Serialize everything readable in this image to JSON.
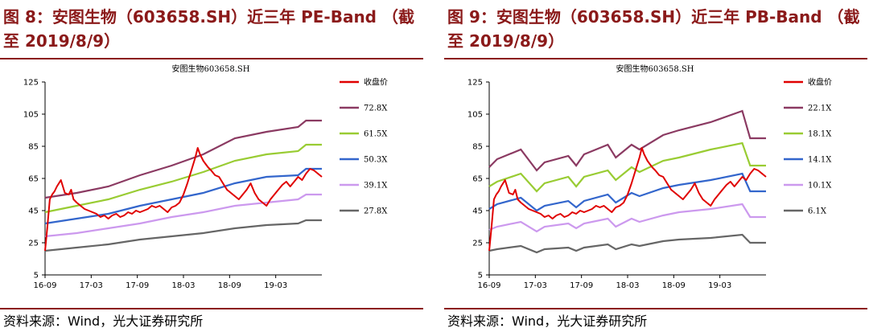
{
  "panels": [
    {
      "heading": "图 8：安图生物（603658.SH）近三年 PE-Band （截至 2019/8/9）",
      "source": "资料来源：Wind，光大证券研究所",
      "chart_data": {
        "type": "line",
        "title": "安图生物603658.SH",
        "ylim": [
          5,
          125
        ],
        "yticks": [
          "5",
          "25",
          "45",
          "65",
          "85",
          "105",
          "125"
        ],
        "xticks": [
          "16-09",
          "17-03",
          "17-09",
          "18-03",
          "18-09",
          "19-03"
        ],
        "xlim": [
          0,
          35
        ],
        "legend_position": "right",
        "price": {
          "name": "收盘价",
          "color": "#e00000",
          "x": [
            0,
            0.3,
            0.6,
            0.9,
            1.2,
            1.5,
            2,
            2.5,
            3,
            3.3,
            3.6,
            4,
            4.5,
            5,
            5.5,
            6,
            6.5,
            7,
            7.5,
            8,
            8.5,
            9,
            9.5,
            10,
            10.5,
            11,
            11.5,
            12,
            12.5,
            13,
            13.5,
            14,
            14.5,
            15,
            15.5,
            16,
            16.5,
            17,
            17.5,
            18,
            18.5,
            19,
            19.3,
            19.6,
            20,
            20.3,
            20.6,
            21,
            21.5,
            22,
            22.5,
            23,
            23.5,
            24,
            24.5,
            25,
            25.5,
            26,
            26.5,
            27,
            27.5,
            28,
            28.5,
            29,
            29.5,
            30,
            30.5,
            31,
            31.5,
            32,
            32.5,
            33,
            33.5,
            34,
            34.5,
            35
          ],
          "y": [
            20,
            35,
            52,
            55,
            57,
            60,
            64,
            56,
            55,
            58,
            52,
            50,
            48,
            46,
            45,
            44,
            43,
            41,
            42,
            40,
            42,
            43,
            41,
            42,
            44,
            43,
            45,
            44,
            45,
            46,
            48,
            47,
            48,
            46,
            44,
            47,
            48,
            50,
            55,
            62,
            70,
            78,
            84,
            80,
            76,
            74,
            72,
            70,
            67,
            66,
            62,
            58,
            56,
            54,
            52,
            55,
            58,
            62,
            56,
            52,
            50,
            48,
            52,
            55,
            58,
            61,
            63,
            60,
            63,
            66,
            64,
            68,
            71,
            70,
            68,
            66
          ]
        },
        "bands": [
          {
            "name": "72.8X",
            "color": "#8b3a62",
            "x": [
              0,
              4,
              8,
              12,
              16,
              20,
              24,
              28,
              32,
              33,
              35
            ],
            "y": [
              53,
              56,
              60,
              67,
              73,
              80,
              90,
              94,
              97,
              101,
              101
            ]
          },
          {
            "name": "61.5X",
            "color": "#99cc33",
            "x": [
              0,
              4,
              8,
              12,
              16,
              20,
              24,
              28,
              32,
              33,
              35
            ],
            "y": [
              44,
              48,
              52,
              58,
              63,
              69,
              76,
              80,
              82,
              86,
              86
            ]
          },
          {
            "name": "50.3X",
            "color": "#3366cc",
            "x": [
              0,
              4,
              8,
              12,
              16,
              20,
              24,
              28,
              32,
              33,
              35
            ],
            "y": [
              37,
              40,
              43,
              48,
              52,
              56,
              62,
              66,
              67,
              71,
              71
            ]
          },
          {
            "name": "39.1X",
            "color": "#cc99ee",
            "x": [
              0,
              4,
              8,
              12,
              16,
              20,
              24,
              28,
              32,
              33,
              35
            ],
            "y": [
              29,
              31,
              34,
              37,
              41,
              44,
              48,
              50,
              52,
              55,
              55
            ]
          },
          {
            "name": "27.8X",
            "color": "#666666",
            "x": [
              0,
              4,
              8,
              12,
              16,
              20,
              24,
              28,
              32,
              33,
              35
            ],
            "y": [
              20,
              22,
              24,
              27,
              29,
              31,
              34,
              36,
              37,
              39,
              39
            ]
          }
        ]
      }
    },
    {
      "heading": "图 9：安图生物（603658.SH）近三年 PB-Band （截至 2019/8/9）",
      "source": "资料来源：Wind，光大证券研究所",
      "chart_data": {
        "type": "line",
        "title": "安图生物603658.SH",
        "ylim": [
          5,
          125
        ],
        "yticks": [
          "5",
          "25",
          "45",
          "65",
          "85",
          "105",
          "125"
        ],
        "xticks": [
          "16-09",
          "17-03",
          "17-09",
          "18-03",
          "18-09",
          "19-03"
        ],
        "xlim": [
          0,
          35
        ],
        "legend_position": "right",
        "price": {
          "name": "收盘价",
          "color": "#e00000",
          "x": [
            0,
            0.3,
            0.6,
            0.9,
            1.2,
            1.5,
            2,
            2.5,
            3,
            3.3,
            3.6,
            4,
            4.5,
            5,
            5.5,
            6,
            6.5,
            7,
            7.5,
            8,
            8.5,
            9,
            9.5,
            10,
            10.5,
            11,
            11.5,
            12,
            12.5,
            13,
            13.5,
            14,
            14.5,
            15,
            15.5,
            16,
            16.5,
            17,
            17.5,
            18,
            18.5,
            19,
            19.3,
            19.6,
            20,
            20.3,
            20.6,
            21,
            21.5,
            22,
            22.5,
            23,
            23.5,
            24,
            24.5,
            25,
            25.5,
            26,
            26.5,
            27,
            27.5,
            28,
            28.5,
            29,
            29.5,
            30,
            30.5,
            31,
            31.5,
            32,
            32.5,
            33,
            33.5,
            34,
            34.5,
            35
          ],
          "y": [
            20,
            35,
            52,
            55,
            57,
            60,
            64,
            56,
            55,
            58,
            52,
            50,
            48,
            46,
            45,
            44,
            43,
            41,
            42,
            40,
            42,
            43,
            41,
            42,
            44,
            43,
            45,
            44,
            45,
            46,
            48,
            47,
            48,
            46,
            44,
            47,
            48,
            50,
            55,
            62,
            70,
            78,
            84,
            80,
            76,
            74,
            72,
            70,
            67,
            66,
            62,
            58,
            56,
            54,
            52,
            55,
            58,
            62,
            56,
            52,
            50,
            48,
            52,
            55,
            58,
            61,
            63,
            60,
            63,
            66,
            64,
            68,
            71,
            70,
            68,
            66
          ]
        },
        "bands": [
          {
            "name": "22.1X",
            "color": "#8b3a62",
            "x": [
              0,
              1,
              4,
              6,
              7,
              10,
              11,
              12,
              15,
              16,
              18,
              19,
              22,
              24,
              28,
              32,
              33,
              35
            ],
            "y": [
              72,
              77,
              83,
              70,
              75,
              79,
              73,
              80,
              86,
              78,
              86,
              83,
              92,
              95,
              100,
              107,
              90,
              90
            ]
          },
          {
            "name": "18.1X",
            "color": "#99cc33",
            "x": [
              0,
              1,
              4,
              6,
              7,
              10,
              11,
              12,
              15,
              16,
              18,
              19,
              22,
              24,
              28,
              32,
              33,
              35
            ],
            "y": [
              60,
              63,
              68,
              57,
              62,
              66,
              60,
              66,
              70,
              64,
              72,
              69,
              76,
              78,
              83,
              87,
              73,
              73
            ]
          },
          {
            "name": "14.1X",
            "color": "#3366cc",
            "x": [
              0,
              1,
              4,
              6,
              7,
              10,
              11,
              12,
              15,
              16,
              18,
              19,
              22,
              24,
              28,
              32,
              33,
              35
            ],
            "y": [
              46,
              49,
              53,
              45,
              48,
              51,
              47,
              51,
              55,
              50,
              56,
              54,
              59,
              61,
              64,
              68,
              57,
              57
            ]
          },
          {
            "name": "10.1X",
            "color": "#cc99ee",
            "x": [
              0,
              1,
              4,
              6,
              7,
              10,
              11,
              12,
              15,
              16,
              18,
              19,
              22,
              24,
              28,
              32,
              33,
              35
            ],
            "y": [
              33,
              35,
              38,
              32,
              35,
              37,
              34,
              37,
              40,
              35,
              40,
              38,
              42,
              44,
              46,
              49,
              41,
              41
            ]
          },
          {
            "name": "6.1X",
            "color": "#666666",
            "x": [
              0,
              1,
              4,
              6,
              7,
              10,
              11,
              12,
              15,
              16,
              18,
              19,
              22,
              24,
              28,
              32,
              33,
              35
            ],
            "y": [
              20,
              21,
              23,
              19,
              21,
              22,
              20,
              22,
              24,
              21,
              24,
              23,
              26,
              27,
              28,
              30,
              25,
              25
            ]
          }
        ]
      }
    }
  ]
}
